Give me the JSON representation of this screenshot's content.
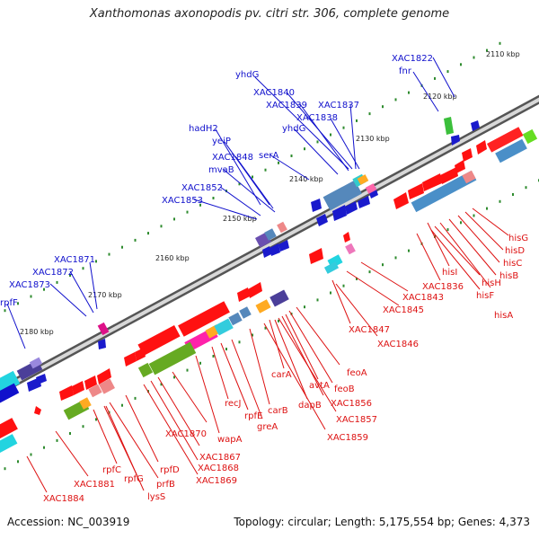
{
  "title": "Xanthomonas axonopodis pv. citri str. 306, complete genome",
  "accession": "Accession: NC_003919",
  "summary": "Topology: circular; Length: 5,175,554 bp; Genes: 4,373",
  "ticks": [
    "2110 kbp",
    "2120 kbp",
    "2130 kbp",
    "2140 kbp",
    "2150 kbp",
    "2160 kbp",
    "2170 kbp",
    "2180 kbp"
  ],
  "forward_labels": [
    "XAC1822",
    "fnr",
    "yhdG",
    "XAC1840",
    "XAC1839",
    "XAC1837",
    "XAC1838",
    "yhdG",
    "hadH2",
    "yeiP",
    "XAC1848",
    "serA",
    "mvaB",
    "XAC1852",
    "XAC1853",
    "XAC1871",
    "XAC1872",
    "XAC1873",
    "rpfF"
  ],
  "reverse_labels": [
    "hisG",
    "hisD",
    "hisC",
    "hisB",
    "hisA",
    "hisI",
    "hisH",
    "hisF",
    "XAC1836",
    "XAC1843",
    "XAC1845",
    "XAC1847",
    "XAC1846",
    "feoA",
    "feoB",
    "avtA",
    "carA",
    "XAC1856",
    "XAC1857",
    "dapB",
    "XAC1859",
    "carB",
    "recJ",
    "rpfE",
    "greA",
    "wapA",
    "XAC1870",
    "XAC1867",
    "XAC1868",
    "XAC1869",
    "rpfD",
    "rpfC",
    "prfB",
    "rpfG",
    "lysS",
    "XAC1881",
    "XAC1884"
  ],
  "colors": {
    "forward_label": "#1010cc",
    "reverse_label": "#dd1111",
    "tick": "#2e8b2e",
    "backbone": "#8a8a8a"
  }
}
